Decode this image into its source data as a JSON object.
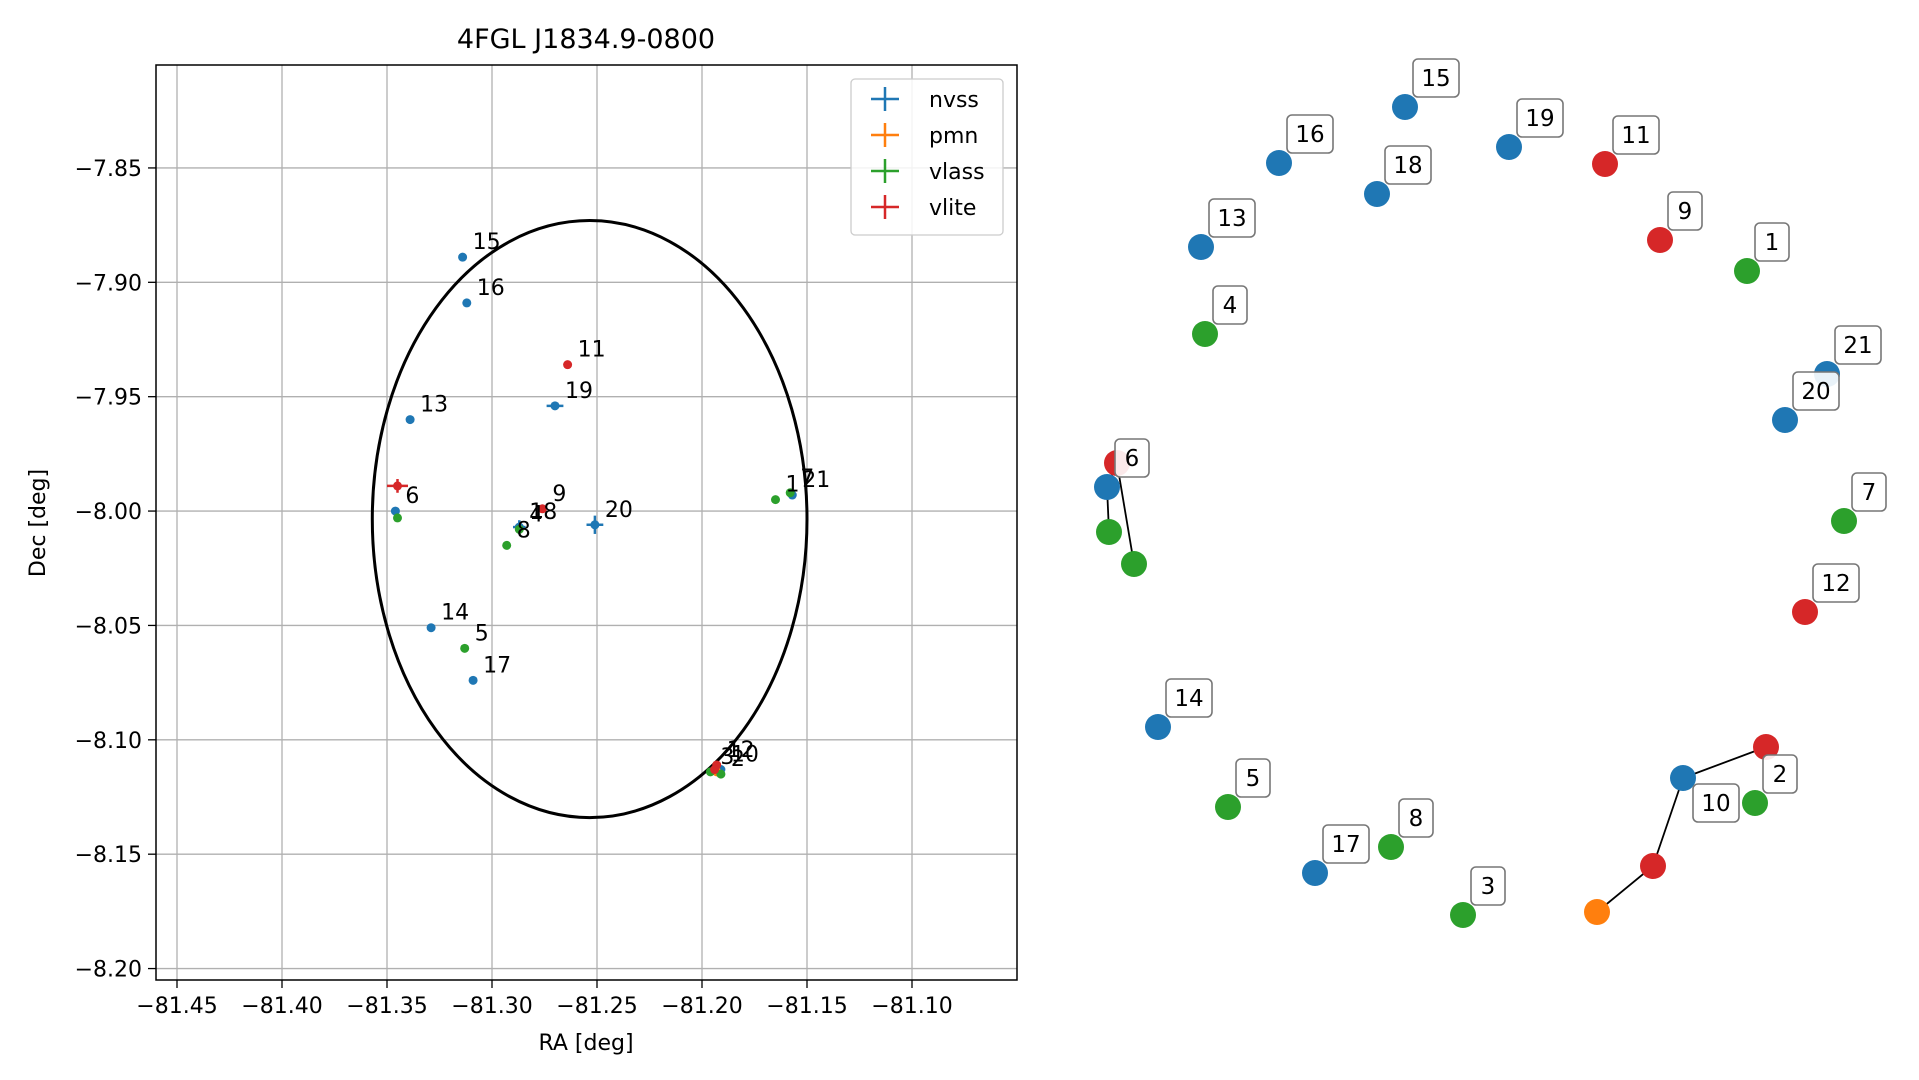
{
  "chart_data": [
    {
      "type": "scatter",
      "title": "4FGL J1834.9-0800",
      "xlabel": "RA [deg]",
      "ylabel": "Dec [deg]",
      "xlim": [
        -81.46,
        -81.05
      ],
      "ylim": [
        -8.205,
        -7.805
      ],
      "xticks": [
        -81.45,
        -81.4,
        -81.35,
        -81.3,
        -81.25,
        -81.2,
        -81.15,
        -81.1
      ],
      "xtick_labels": [
        "−81.45",
        "−81.40",
        "−81.35",
        "−81.30",
        "−81.25",
        "−81.20",
        "−81.15",
        "−81.10"
      ],
      "yticks": [
        -7.85,
        -7.9,
        -7.95,
        -8.0,
        -8.05,
        -8.1,
        -8.15,
        -8.2
      ],
      "ytick_labels": [
        "−7.85",
        "−7.90",
        "−7.95",
        "−8.00",
        "−8.05",
        "−8.10",
        "−8.15",
        "−8.20"
      ],
      "grid": true,
      "legend_position": "top-right",
      "ellipse": {
        "center": [
          -81.2535,
          -8.0035
        ],
        "semi_ra": 0.1035,
        "semi_dec": 0.1305,
        "color": "#000000"
      },
      "series": [
        {
          "name": "nvss",
          "color": "#1f77b4",
          "points": [
            {
              "label": "15",
              "ra": -81.314,
              "dec": -7.889,
              "err_ra": 0,
              "err_dec": 0
            },
            {
              "label": "16",
              "ra": -81.312,
              "dec": -7.909,
              "err_ra": 0,
              "err_dec": 0
            },
            {
              "label": "13",
              "ra": -81.339,
              "dec": -7.96,
              "err_ra": 0,
              "err_dec": 0
            },
            {
              "label": "19",
              "ra": -81.27,
              "dec": -7.954,
              "err_ra": 0.004,
              "err_dec": 0
            },
            {
              "label": "6",
              "ra": -81.346,
              "dec": -8.0,
              "err_ra": 0,
              "err_dec": 0
            },
            {
              "label": "18",
              "ra": -81.287,
              "dec": -8.007,
              "err_ra": 0.003,
              "err_dec": 0.003
            },
            {
              "label": "20",
              "ra": -81.251,
              "dec": -8.006,
              "err_ra": 0.004,
              "err_dec": 0.004
            },
            {
              "label": "21",
              "ra": -81.157,
              "dec": -7.993,
              "err_ra": 0,
              "err_dec": 0
            },
            {
              "label": "14",
              "ra": -81.329,
              "dec": -8.051,
              "err_ra": 0,
              "err_dec": 0
            },
            {
              "label": "17",
              "ra": -81.309,
              "dec": -8.074,
              "err_ra": 0,
              "err_dec": 0
            },
            {
              "label": "10",
              "ra": -81.191,
              "dec": -8.113,
              "err_ra": 0,
              "err_dec": 0
            }
          ]
        },
        {
          "name": "pmn",
          "color": "#ff7f0e",
          "points": [
            {
              "label": "",
              "ra": -81.193,
              "dec": -8.114,
              "err_ra": 0,
              "err_dec": 0
            }
          ]
        },
        {
          "name": "vlass",
          "color": "#2ca02c",
          "points": [
            {
              "label": "1",
              "ra": -81.165,
              "dec": -7.995,
              "err_ra": 0,
              "err_dec": 0
            },
            {
              "label": "",
              "ra": -81.345,
              "dec": -8.003,
              "err_ra": 0,
              "err_dec": 0
            },
            {
              "label": "4",
              "ra": -81.287,
              "dec": -8.008,
              "err_ra": 0,
              "err_dec": 0
            },
            {
              "label": "8",
              "ra": -81.293,
              "dec": -8.015,
              "err_ra": 0,
              "err_dec": 0
            },
            {
              "label": "5",
              "ra": -81.313,
              "dec": -8.06,
              "err_ra": 0,
              "err_dec": 0
            },
            {
              "label": "3",
              "ra": -81.196,
              "dec": -8.114,
              "err_ra": 0,
              "err_dec": 0
            },
            {
              "label": "2",
              "ra": -81.191,
              "dec": -8.115,
              "err_ra": 0,
              "err_dec": 0
            },
            {
              "label": "7",
              "ra": -81.158,
              "dec": -7.992,
              "err_ra": 0,
              "err_dec": 0
            }
          ]
        },
        {
          "name": "vlite",
          "color": "#d62728",
          "points": [
            {
              "label": "11",
              "ra": -81.264,
              "dec": -7.936,
              "err_ra": 0,
              "err_dec": 0
            },
            {
              "label": "9",
              "ra": -81.276,
              "dec": -7.999,
              "err_ra": 0,
              "err_dec": 0
            },
            {
              "label": "",
              "ra": -81.345,
              "dec": -7.989,
              "err_ra": 0.005,
              "err_dec": 0.003
            },
            {
              "label": "12",
              "ra": -81.193,
              "dec": -8.111,
              "err_ra": 0,
              "err_dec": 0
            },
            {
              "label": "",
              "ra": -81.194,
              "dec": -8.113,
              "err_ra": 0,
              "err_dec": 0
            }
          ]
        }
      ]
    },
    {
      "type": "network",
      "nodes": [
        {
          "label": "15",
          "color": "#1f77b4",
          "show_label": true
        },
        {
          "label": "16",
          "color": "#1f77b4",
          "show_label": true
        },
        {
          "label": "19",
          "color": "#1f77b4",
          "show_label": true
        },
        {
          "label": "11",
          "color": "#d62728",
          "show_label": true
        },
        {
          "label": "18",
          "color": "#1f77b4",
          "show_label": true
        },
        {
          "label": "13",
          "color": "#1f77b4",
          "show_label": true
        },
        {
          "label": "9",
          "color": "#d62728",
          "show_label": true
        },
        {
          "label": "1",
          "color": "#2ca02c",
          "show_label": true
        },
        {
          "label": "4",
          "color": "#2ca02c",
          "show_label": true
        },
        {
          "label": "21",
          "color": "#1f77b4",
          "show_label": true
        },
        {
          "label": "20",
          "color": "#1f77b4",
          "show_label": true
        },
        {
          "label": "6",
          "color": "#1f77b4",
          "show_label": true
        },
        {
          "label": "6r",
          "color": "#d62728",
          "show_label": false
        },
        {
          "label": "6g1",
          "color": "#2ca02c",
          "show_label": false
        },
        {
          "label": "6g2",
          "color": "#2ca02c",
          "show_label": false
        },
        {
          "label": "7",
          "color": "#2ca02c",
          "show_label": true
        },
        {
          "label": "12",
          "color": "#d62728",
          "show_label": true
        },
        {
          "label": "14",
          "color": "#1f77b4",
          "show_label": true
        },
        {
          "label": "5",
          "color": "#2ca02c",
          "show_label": true
        },
        {
          "label": "10",
          "color": "#1f77b4",
          "show_label": true
        },
        {
          "label": "2",
          "color": "#2ca02c",
          "show_label": true
        },
        {
          "label": "2r",
          "color": "#d62728",
          "show_label": false
        },
        {
          "label": "8",
          "color": "#2ca02c",
          "show_label": true
        },
        {
          "label": "17",
          "color": "#1f77b4",
          "show_label": true
        },
        {
          "label": "3",
          "color": "#2ca02c",
          "show_label": true
        },
        {
          "label": "10r",
          "color": "#d62728",
          "show_label": false
        },
        {
          "label": "10o",
          "color": "#ff7f0e",
          "show_label": false
        }
      ],
      "edges": [
        [
          "6",
          "6r"
        ],
        [
          "6r",
          "6g2"
        ],
        [
          "6",
          "6g1"
        ],
        [
          "10",
          "2r"
        ],
        [
          "10",
          "10r"
        ],
        [
          "10r",
          "10o"
        ]
      ]
    }
  ]
}
